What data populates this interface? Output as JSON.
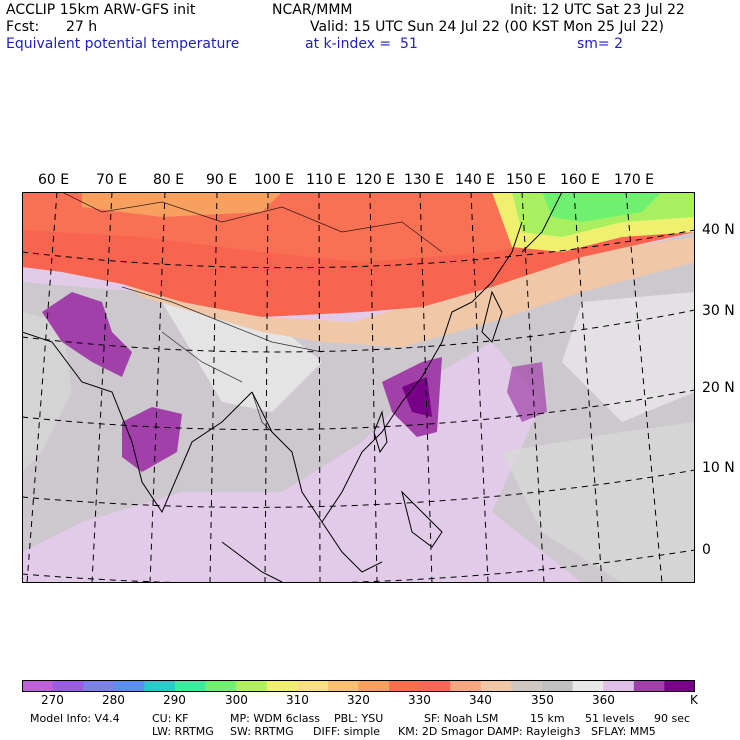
{
  "header": {
    "model": "ACCLIP 15km ARW-GFS init",
    "org": "NCAR/MMM",
    "init": "Init: 12 UTC Sat 23 Jul 22",
    "fcst_label": "Fcst:",
    "fcst_value": "27 h",
    "valid": "Valid: 15 UTC Sun 24 Jul 22 (00 KST Mon 25 Jul 22)",
    "field": "Equivalent potential temperature",
    "level": "at k-index =  51",
    "smooth": "sm= 2"
  },
  "map": {
    "lon_labels": [
      "60 E",
      "70 E",
      "80 E",
      "90 E",
      "100 E",
      "110 E",
      "120 E",
      "130 E",
      "140 E",
      "150 E",
      "160 E",
      "170 E"
    ],
    "lat_labels": [
      "40 N",
      "30 N",
      "20 N",
      "10 N",
      "0"
    ]
  },
  "colorbar": {
    "colors": [
      "#c060d8",
      "#9a5ce0",
      "#7f7fe8",
      "#5a8ff0",
      "#30c8c8",
      "#40e8a0",
      "#70f070",
      "#b0f060",
      "#f0f070",
      "#f8e080",
      "#f8c070",
      "#f8a060",
      "#f87050",
      "#f86858",
      "#f8a880",
      "#f0c8a8",
      "#d0c8c0",
      "#c0c0c0",
      "#e8e8e8",
      "#e0c0e8",
      "#a040a8",
      "#780088"
    ],
    "labels": [
      "270",
      "280",
      "290",
      "300",
      "310",
      "320",
      "330",
      "340",
      "350",
      "360"
    ],
    "unit": "K"
  },
  "model_info": {
    "line1": [
      "Model Info: V4.4",
      "CU: KF",
      "MP: WDM 6class",
      "PBL: YSU",
      "SF: Noah LSM",
      "15 km",
      "51 levels",
      "90 sec"
    ],
    "line2": [
      "LW: RRTMG",
      "SW: RRTMG",
      "DIFF: simple",
      "KM: 2D Smagor",
      "DAMP: Rayleigh3",
      "SFLAY: MM5"
    ]
  }
}
